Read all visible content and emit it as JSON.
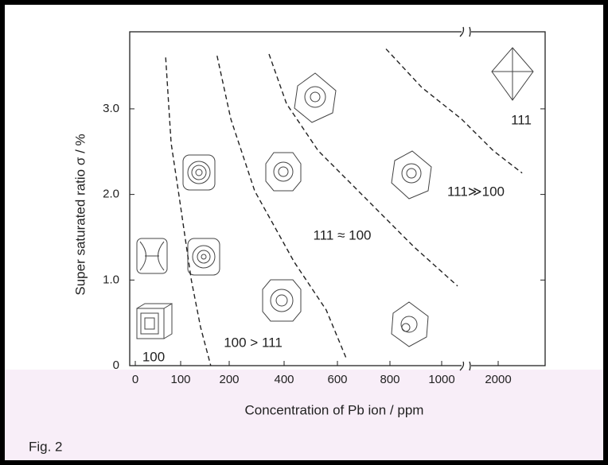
{
  "chart_data": {
    "type": "line",
    "xlabel": "Concentration of Pb ion / ppm",
    "ylabel": "Super saturated ratio σ / %",
    "caption": "Fig. 2",
    "xlim": [
      0,
      2800
    ],
    "xticks": [
      0,
      100,
      200,
      400,
      600,
      800,
      1000,
      2000
    ],
    "ylim": [
      0,
      3.9
    ],
    "yticks": [
      {
        "value": 0,
        "label": "0"
      },
      {
        "value": 1,
        "label": "1.0"
      },
      {
        "value": 2,
        "label": "2.0"
      },
      {
        "value": 3,
        "label": "3.0"
      }
    ],
    "series": [
      {
        "color": "#222",
        "x": [
          67,
          79,
          96,
          122,
          141,
          162
        ],
        "values": [
          3.6,
          2.6,
          2.0,
          1.0,
          0.45,
          0
        ]
      },
      {
        "color": "#222",
        "x": [
          175,
          206,
          293,
          438,
          558,
          633
        ],
        "values": [
          3.62,
          2.88,
          2.04,
          1.21,
          0.65,
          0.09
        ]
      },
      {
        "color": "#222",
        "x": [
          345,
          409,
          528,
          709,
          892,
          1282
        ],
        "values": [
          3.64,
          3.06,
          2.51,
          1.95,
          1.39,
          0.93
        ]
      },
      {
        "color": "#222",
        "x": [
          785,
          923,
          1352,
          1915,
          2408
        ],
        "values": [
          3.7,
          3.25,
          2.88,
          2.51,
          2.25
        ]
      }
    ],
    "annotations": [
      "100",
      "100 > 111",
      "111 ≈ 100",
      "111≫100",
      "111"
    ]
  }
}
